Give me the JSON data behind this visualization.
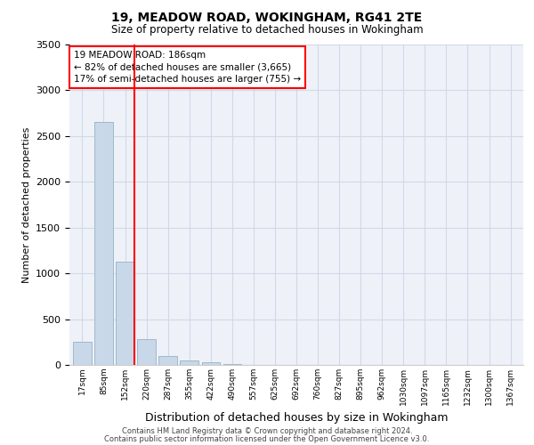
{
  "title1": "19, MEADOW ROAD, WOKINGHAM, RG41 2TE",
  "title2": "Size of property relative to detached houses in Wokingham",
  "xlabel": "Distribution of detached houses by size in Wokingham",
  "ylabel": "Number of detached properties",
  "categories": [
    "17sqm",
    "85sqm",
    "152sqm",
    "220sqm",
    "287sqm",
    "355sqm",
    "422sqm",
    "490sqm",
    "557sqm",
    "625sqm",
    "692sqm",
    "760sqm",
    "827sqm",
    "895sqm",
    "962sqm",
    "1030sqm",
    "1097sqm",
    "1165sqm",
    "1232sqm",
    "1300sqm",
    "1367sqm"
  ],
  "values": [
    250,
    2650,
    1130,
    280,
    100,
    50,
    30,
    5,
    0,
    0,
    0,
    0,
    0,
    0,
    0,
    0,
    0,
    0,
    0,
    0,
    0
  ],
  "bar_color": "#c8d8e8",
  "bar_edge_color": "#a0b8cc",
  "grid_color": "#d0d8e8",
  "bg_color": "#eef2f8",
  "annotation_text": "19 MEADOW ROAD: 186sqm\n← 82% of detached houses are smaller (3,665)\n17% of semi-detached houses are larger (755) →",
  "annotation_box_color": "white",
  "annotation_box_edge": "red",
  "vline_color": "red",
  "vline_x_index": 2,
  "vline_x_offset": 0.425,
  "ylim": [
    0,
    3500
  ],
  "yticks": [
    0,
    500,
    1000,
    1500,
    2000,
    2500,
    3000,
    3500
  ],
  "footer1": "Contains HM Land Registry data © Crown copyright and database right 2024.",
  "footer2": "Contains public sector information licensed under the Open Government Licence v3.0."
}
